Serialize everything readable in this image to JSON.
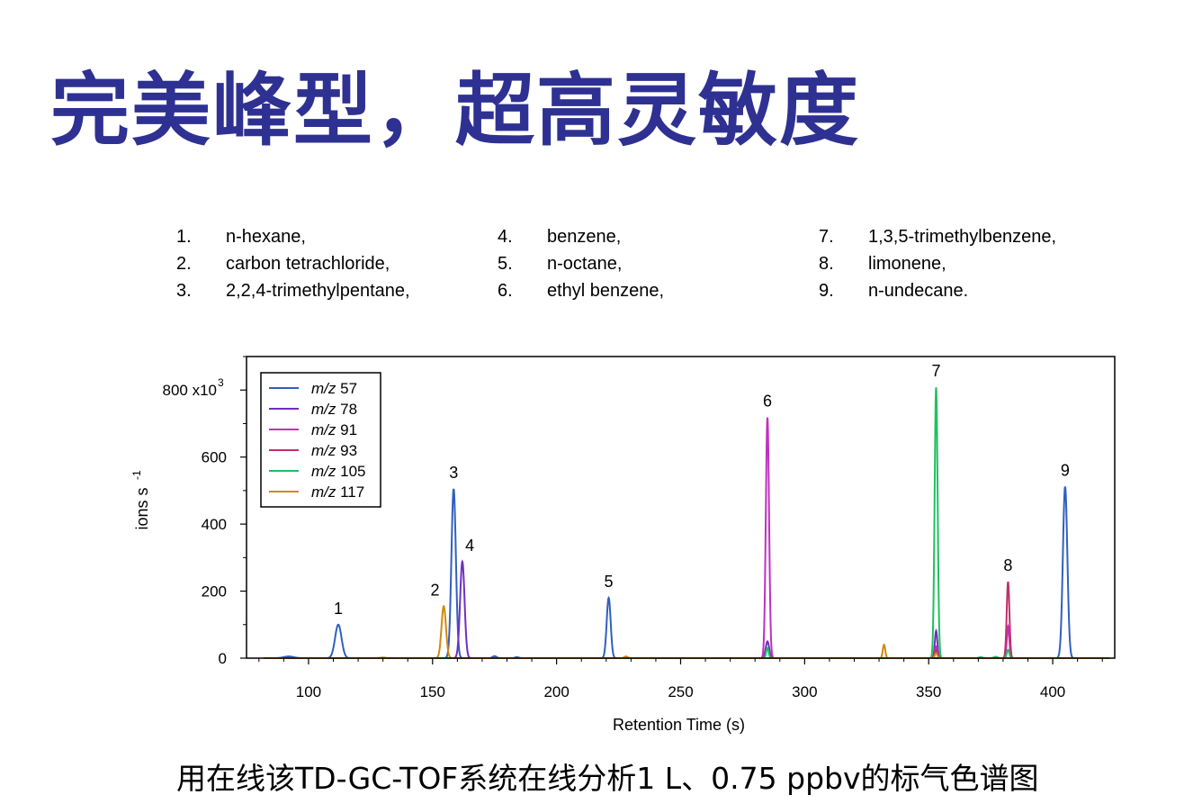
{
  "header": {
    "title": "完美峰型，超高灵敏度"
  },
  "compounds": [
    {
      "num": "1.",
      "name": "n-hexane,"
    },
    {
      "num": "2.",
      "name": "carbon tetrachloride,"
    },
    {
      "num": "3.",
      "name": "2,2,4-trimethylpentane,"
    },
    {
      "num": "4.",
      "name": "benzene,"
    },
    {
      "num": "5.",
      "name": "n-octane,"
    },
    {
      "num": "6.",
      "name": "ethyl benzene,"
    },
    {
      "num": "7.",
      "name": "1,3,5-trimethylbenzene,"
    },
    {
      "num": "8.",
      "name": "limonene,"
    },
    {
      "num": "9.",
      "name": "n-undecane."
    }
  ],
  "caption": "用在线该TD-GC-TOF系统在线分析1 L、0.75 ppbv的标气色谱图",
  "chart_data": {
    "type": "line",
    "xlabel": "Retention Time (s)",
    "ylabel": "ions s",
    "ylabel_exp": "-1",
    "ytick_multiplier": "x10",
    "ytick_exp": "3",
    "xlim": [
      75,
      425
    ],
    "ylim": [
      0,
      900
    ],
    "xticks": [
      100,
      150,
      200,
      250,
      300,
      350,
      400
    ],
    "yticks": [
      0,
      200,
      400,
      600,
      800
    ],
    "legend_position": "top-left",
    "series": [
      {
        "name": "57",
        "color": "#3060c0",
        "peaks": [
          {
            "x": 92,
            "y": 5,
            "w": 2
          },
          {
            "x": 112,
            "y": 100,
            "w": 1.3
          },
          {
            "x": 158.5,
            "y": 505,
            "w": 0.9
          },
          {
            "x": 175,
            "y": 6,
            "w": 0.8
          },
          {
            "x": 184,
            "y": 3,
            "w": 0.8
          },
          {
            "x": 221,
            "y": 180,
            "w": 0.8
          },
          {
            "x": 405,
            "y": 512,
            "w": 0.9
          }
        ]
      },
      {
        "name": "78",
        "color": "#7030c0",
        "peaks": [
          {
            "x": 162,
            "y": 288,
            "w": 0.9
          },
          {
            "x": 285,
            "y": 50,
            "w": 0.7
          },
          {
            "x": 353,
            "y": 82,
            "w": 0.5
          }
        ]
      },
      {
        "name": "91",
        "color": "#c030c0",
        "peaks": [
          {
            "x": 285,
            "y": 718,
            "w": 0.65
          },
          {
            "x": 353,
            "y": 35,
            "w": 0.5
          },
          {
            "x": 382,
            "y": 95,
            "w": 0.5
          }
        ]
      },
      {
        "name": "93",
        "color": "#c0306a",
        "peaks": [
          {
            "x": 382,
            "y": 228,
            "w": 0.55
          },
          {
            "x": 353,
            "y": 25,
            "w": 0.5
          }
        ]
      },
      {
        "name": "105",
        "color": "#20c060",
        "peaks": [
          {
            "x": 353,
            "y": 808,
            "w": 0.6
          },
          {
            "x": 285,
            "y": 30,
            "w": 0.5
          },
          {
            "x": 382,
            "y": 25,
            "w": 0.5
          },
          {
            "x": 371,
            "y": 3,
            "w": 0.8
          },
          {
            "x": 377,
            "y": 4,
            "w": 0.8
          }
        ]
      },
      {
        "name": "117",
        "color": "#d08a10",
        "peaks": [
          {
            "x": 154.5,
            "y": 155,
            "w": 0.9
          },
          {
            "x": 228,
            "y": 5,
            "w": 0.7
          },
          {
            "x": 332,
            "y": 40,
            "w": 0.5
          },
          {
            "x": 353,
            "y": 15,
            "w": 0.5
          },
          {
            "x": 130,
            "y": 2,
            "w": 1
          }
        ]
      }
    ],
    "annotations": [
      {
        "text": "1",
        "x": 112,
        "y": 100
      },
      {
        "text": "2",
        "x": 151,
        "y": 155
      },
      {
        "text": "3",
        "x": 158.5,
        "y": 505
      },
      {
        "text": "4",
        "x": 165,
        "y": 288
      },
      {
        "text": "5",
        "x": 221,
        "y": 180
      },
      {
        "text": "6",
        "x": 285,
        "y": 718
      },
      {
        "text": "7",
        "x": 353,
        "y": 808
      },
      {
        "text": "8",
        "x": 382,
        "y": 228
      },
      {
        "text": "9",
        "x": 405,
        "y": 512
      }
    ]
  }
}
